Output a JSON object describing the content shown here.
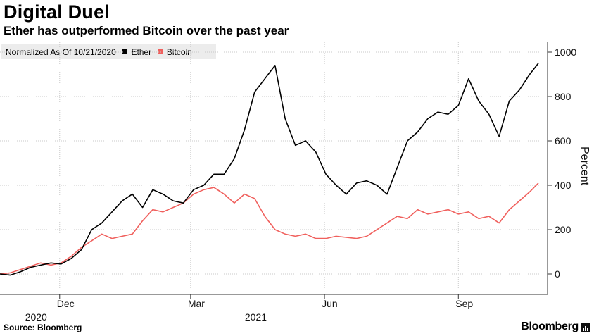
{
  "header": {
    "title": "Digital Duel",
    "subtitle": "Ether has outperformed Bitcoin over the past year"
  },
  "legend": {
    "note": "Normalized As Of 10/21/2020",
    "items": [
      {
        "label": "Ether",
        "color": "#000000"
      },
      {
        "label": "Bitcoin",
        "color": "#f0605d"
      }
    ]
  },
  "footer": {
    "source": "Source: Bloomberg",
    "brand": "Bloomberg",
    "brand_icon": "bloomberg-terminal-icon"
  },
  "chart_data": {
    "type": "line",
    "title": "Digital Duel",
    "subtitle": "Ether has outperformed Bitcoin over the past year",
    "note": "Normalized As Of 10/21/2020",
    "ylabel": "Percent",
    "xlabel": "",
    "ylim": [
      -100,
      1000
    ],
    "yticks": [
      0,
      200,
      400,
      600,
      800,
      1000
    ],
    "y_axis_side": "right",
    "grid": true,
    "legend_position": "top-left",
    "x_range": [
      "2020-10-21",
      "2021-10-26"
    ],
    "month_ticks": [
      {
        "label": "Dec",
        "date": "2020-12-01"
      },
      {
        "label": "Mar",
        "date": "2021-03-01"
      },
      {
        "label": "Jun",
        "date": "2021-06-01"
      },
      {
        "label": "Sep",
        "date": "2021-09-01"
      }
    ],
    "year_labels": [
      {
        "label": "2020",
        "date": "2020-11-15"
      },
      {
        "label": "2021",
        "date": "2021-04-15"
      }
    ],
    "x": [
      "2020-10-21",
      "2020-10-28",
      "2020-11-04",
      "2020-11-11",
      "2020-11-18",
      "2020-11-25",
      "2020-12-02",
      "2020-12-09",
      "2020-12-16",
      "2020-12-23",
      "2020-12-30",
      "2021-01-06",
      "2021-01-13",
      "2021-01-20",
      "2021-01-27",
      "2021-02-03",
      "2021-02-10",
      "2021-02-17",
      "2021-02-24",
      "2021-03-03",
      "2021-03-10",
      "2021-03-17",
      "2021-03-24",
      "2021-03-31",
      "2021-04-07",
      "2021-04-14",
      "2021-04-21",
      "2021-04-28",
      "2021-05-05",
      "2021-05-12",
      "2021-05-19",
      "2021-05-26",
      "2021-06-02",
      "2021-06-09",
      "2021-06-16",
      "2021-06-23",
      "2021-06-30",
      "2021-07-07",
      "2021-07-14",
      "2021-07-21",
      "2021-07-28",
      "2021-08-04",
      "2021-08-11",
      "2021-08-18",
      "2021-08-25",
      "2021-09-01",
      "2021-09-08",
      "2021-09-15",
      "2021-09-22",
      "2021-09-29",
      "2021-10-06",
      "2021-10-13",
      "2021-10-20",
      "2021-10-26"
    ],
    "series": [
      {
        "name": "Ether",
        "color": "#000000",
        "values": [
          0,
          -5,
          10,
          30,
          40,
          50,
          45,
          70,
          110,
          200,
          230,
          280,
          330,
          360,
          300,
          380,
          360,
          330,
          320,
          380,
          400,
          450,
          450,
          520,
          650,
          820,
          880,
          940,
          700,
          580,
          600,
          550,
          450,
          400,
          360,
          410,
          420,
          400,
          360,
          480,
          600,
          640,
          700,
          730,
          720,
          760,
          880,
          780,
          720,
          620,
          780,
          830,
          900,
          950
        ]
      },
      {
        "name": "Bitcoin",
        "color": "#f0605d",
        "values": [
          0,
          5,
          20,
          35,
          50,
          40,
          50,
          80,
          120,
          150,
          180,
          160,
          170,
          180,
          240,
          290,
          280,
          300,
          320,
          360,
          380,
          390,
          360,
          320,
          360,
          340,
          260,
          200,
          180,
          170,
          180,
          160,
          160,
          170,
          165,
          160,
          170,
          200,
          230,
          260,
          250,
          290,
          270,
          280,
          290,
          270,
          280,
          250,
          260,
          230,
          290,
          330,
          370,
          410
        ]
      }
    ]
  }
}
